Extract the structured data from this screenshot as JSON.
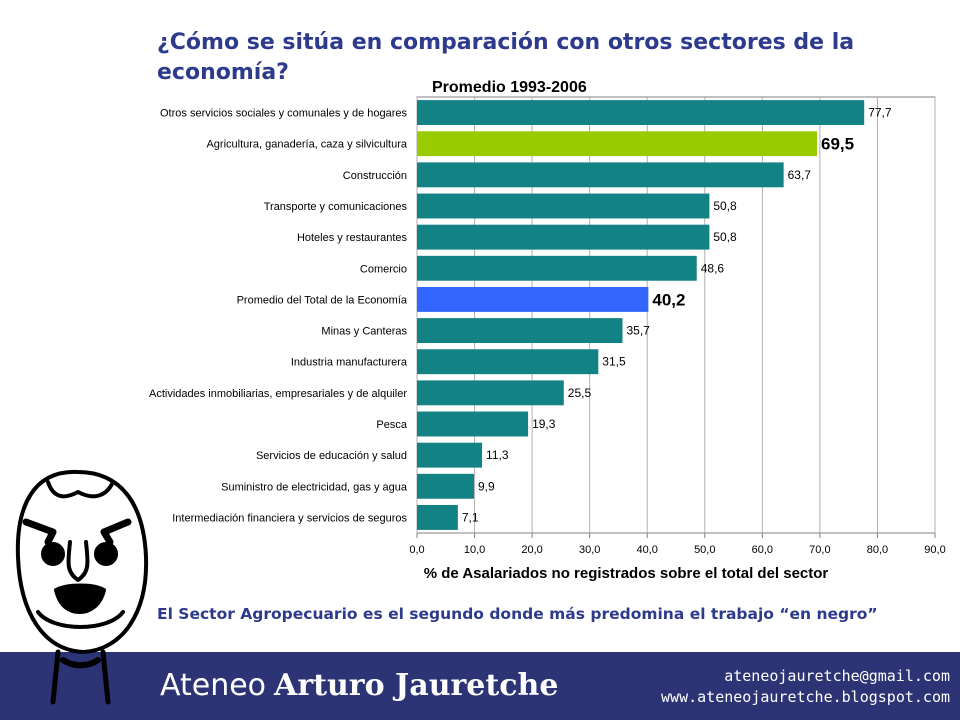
{
  "header": {
    "title": "¿Cómo se sitúa en comparación con otros sectores de la economía?"
  },
  "chart_data": {
    "type": "bar",
    "orientation": "horizontal",
    "title": "Promedio 1993-2006",
    "xlabel": "% de Asalariados no registrados sobre el total del sector",
    "xlim": [
      0,
      90
    ],
    "xticks": [
      "0,0",
      "10,0",
      "20,0",
      "30,0",
      "40,0",
      "50,0",
      "60,0",
      "70,0",
      "80,0",
      "90,0"
    ],
    "grid": true,
    "categories": [
      "Otros servicios sociales y comunales y de hogares",
      "Agricultura, ganadería, caza y silvicultura",
      "Construcción",
      "Transporte y comunicaciones",
      "Hoteles y restaurantes",
      "Comercio",
      "Promedio del Total de la Economía",
      "Minas y Canteras",
      "Industria manufacturera",
      "Actividades inmobiliarias, empresariales y de alquiler",
      "Pesca",
      "Servicios de educación y salud",
      "Suministro de electricidad, gas y agua",
      "Intermediación financiera y servicios de seguros"
    ],
    "values": [
      77.7,
      69.5,
      63.7,
      50.8,
      50.8,
      48.6,
      40.2,
      35.7,
      31.5,
      25.5,
      19.3,
      11.3,
      9.9,
      7.1
    ],
    "value_labels": [
      "77,7",
      "69,5",
      "63,7",
      "50,8",
      "50,8",
      "48,6",
      "40,2",
      "35,7",
      "31,5",
      "25,5",
      "19,3",
      "11,3",
      "9,9",
      "7,1"
    ],
    "highlighted": [
      "Agricultura, ganadería, caza y silvicultura",
      "Promedio del Total de la Economía"
    ],
    "colors": {
      "default": "#138284",
      "Agricultura, ganadería, caza y silvicultura": "#99cc00",
      "Promedio del Total de la Economía": "#3366ff"
    }
  },
  "caption": {
    "text": "El Sector Agropecuario es el segundo donde más predomina el trabajo “en negro”"
  },
  "footer": {
    "brand_light": "Ateneo",
    "brand_bold": "Arturo Jauretche",
    "email": "ateneojauretche@gmail.com",
    "website": "www.ateneojauretche.blogspot.com",
    "background": "#2d3476"
  }
}
